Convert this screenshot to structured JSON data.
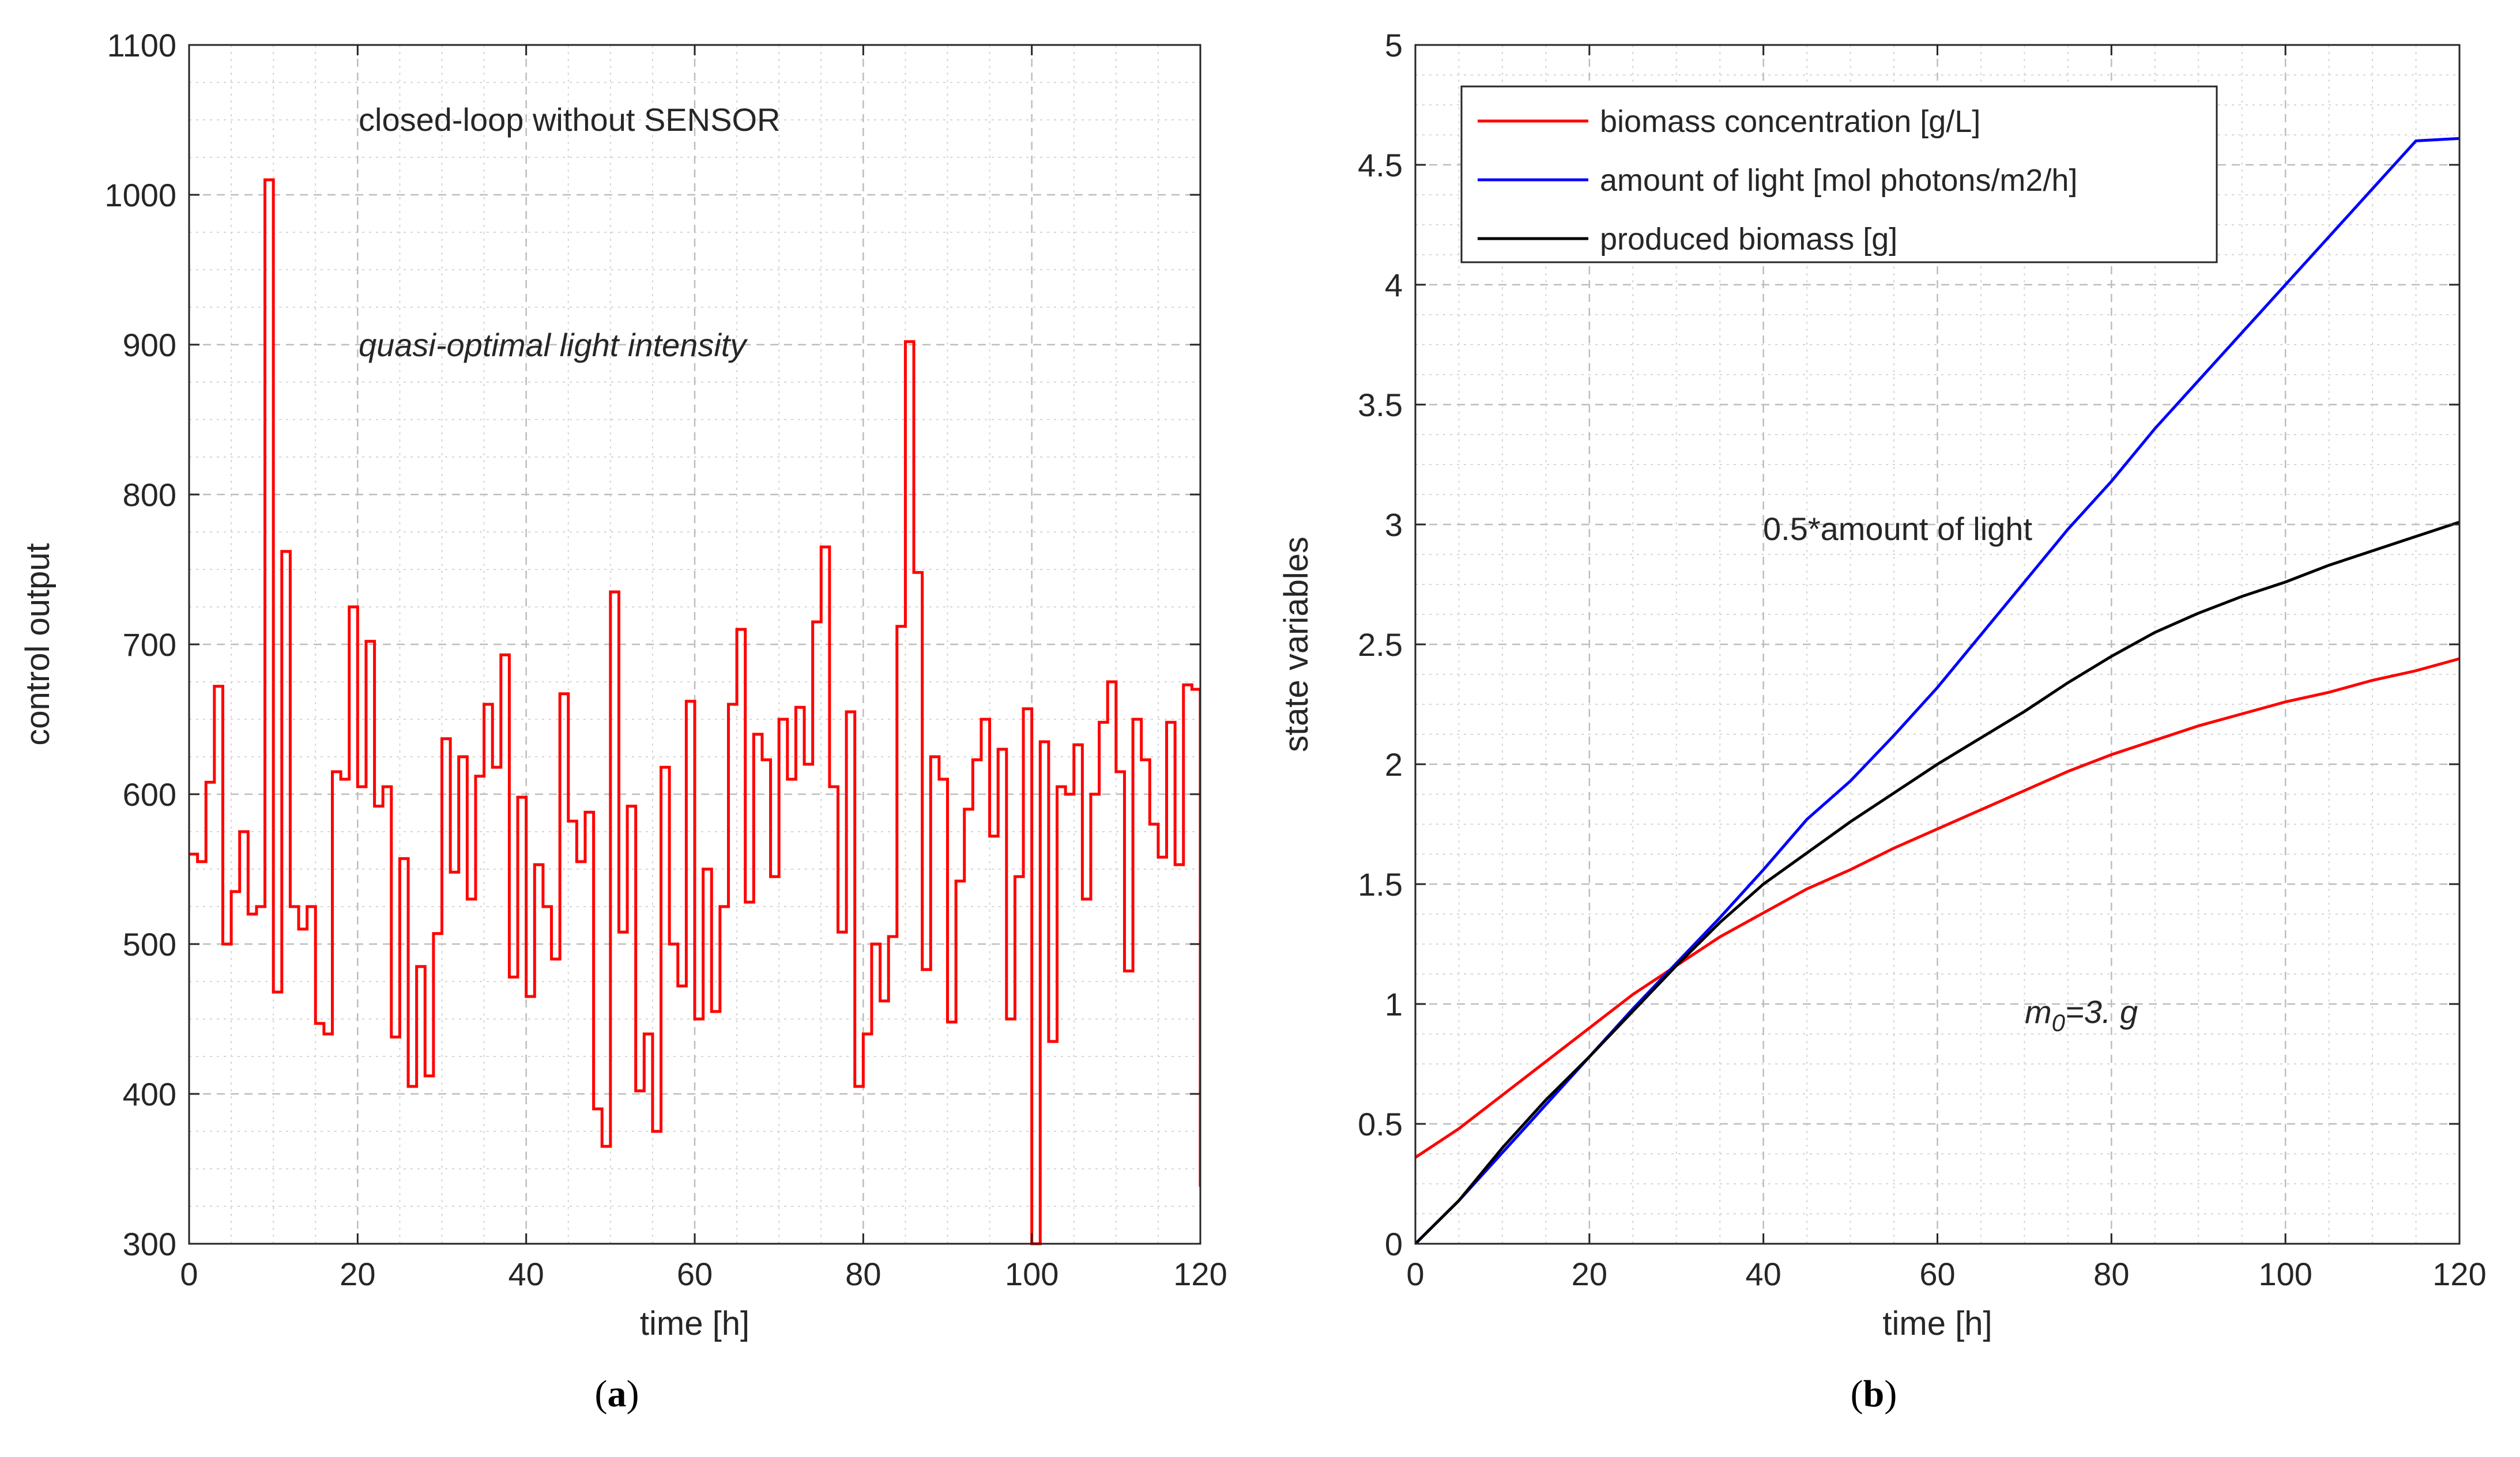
{
  "chart_data": [
    {
      "type": "line",
      "panel": "a",
      "caption_letter": "a",
      "xlabel": "time [h]",
      "ylabel": "control output",
      "xlim": [
        0,
        120
      ],
      "ylim": [
        300,
        1100
      ],
      "xticks": [
        0,
        20,
        40,
        60,
        80,
        100,
        120
      ],
      "yticks": [
        300,
        400,
        500,
        600,
        700,
        800,
        900,
        1000,
        1100
      ],
      "grid": true,
      "annotations": [
        "closed-loop without SENSOR",
        "quasi-optimal light intensity"
      ],
      "series": [
        {
          "name": "control output",
          "color": "#ff0000",
          "step": true,
          "x": [
            0,
            1,
            2,
            3,
            4,
            5,
            6,
            7,
            8,
            9,
            10,
            11,
            12,
            13,
            14,
            15,
            16,
            17,
            18,
            19,
            20,
            21,
            22,
            23,
            24,
            25,
            26,
            27,
            28,
            29,
            30,
            31,
            32,
            33,
            34,
            35,
            36,
            37,
            38,
            39,
            40,
            41,
            42,
            43,
            44,
            45,
            46,
            47,
            48,
            49,
            50,
            51,
            52,
            53,
            54,
            55,
            56,
            57,
            58,
            59,
            60,
            61,
            62,
            63,
            64,
            65,
            66,
            67,
            68,
            69,
            70,
            71,
            72,
            73,
            74,
            75,
            76,
            77,
            78,
            79,
            80,
            81,
            82,
            83,
            84,
            85,
            86,
            87,
            88,
            89,
            90,
            91,
            92,
            93,
            94,
            95,
            96,
            97,
            98,
            99,
            100,
            101,
            102,
            103,
            104,
            105,
            106,
            107,
            108,
            109,
            110,
            111,
            112,
            113,
            114,
            115,
            116,
            117,
            118,
            119,
            120
          ],
          "values": [
            560,
            555,
            608,
            672,
            500,
            535,
            575,
            520,
            525,
            1010,
            468,
            762,
            525,
            510,
            525,
            447,
            440,
            615,
            610,
            725,
            605,
            702,
            592,
            605,
            438,
            557,
            405,
            485,
            412,
            507,
            637,
            548,
            625,
            530,
            612,
            660,
            618,
            693,
            478,
            598,
            465,
            553,
            525,
            490,
            667,
            582,
            555,
            588,
            390,
            365,
            735,
            508,
            592,
            402,
            440,
            375,
            618,
            500,
            472,
            662,
            450,
            550,
            455,
            525,
            660,
            710,
            528,
            640,
            623,
            545,
            650,
            610,
            658,
            620,
            715,
            765,
            605,
            508,
            655,
            405,
            440,
            500,
            462,
            505,
            712,
            902,
            748,
            483,
            625,
            610,
            448,
            542,
            590,
            623,
            650,
            572,
            630,
            450,
            545,
            657,
            300,
            635,
            435,
            605,
            600,
            633,
            530,
            600,
            648,
            675,
            615,
            482,
            650,
            623,
            580,
            558,
            648,
            553,
            673,
            670,
            338
          ]
        }
      ]
    },
    {
      "type": "line",
      "panel": "b",
      "caption_letter": "b",
      "xlabel": "time [h]",
      "ylabel": "state variables",
      "xlim": [
        0,
        120
      ],
      "ylim": [
        0,
        5
      ],
      "xticks": [
        0,
        20,
        40,
        60,
        80,
        100,
        120
      ],
      "yticks": [
        0,
        0.5,
        1,
        1.5,
        2,
        2.5,
        3,
        3.5,
        4,
        4.5,
        5
      ],
      "grid": true,
      "legend_position": "top-left",
      "annotations": [
        "0.5*amount of light"
      ],
      "annotation_m0": {
        "base": "m",
        "sub": "0",
        "rest": "=3. g"
      },
      "series": [
        {
          "name": "biomass concentration [g/L]",
          "color": "#ff0000",
          "x": [
            0,
            5,
            10,
            15,
            20,
            25,
            30,
            35,
            40,
            45,
            50,
            55,
            60,
            65,
            70,
            75,
            80,
            85,
            90,
            95,
            100,
            105,
            110,
            115,
            120
          ],
          "values": [
            0.36,
            0.48,
            0.62,
            0.76,
            0.9,
            1.04,
            1.16,
            1.28,
            1.38,
            1.48,
            1.56,
            1.65,
            1.73,
            1.81,
            1.89,
            1.97,
            2.04,
            2.1,
            2.16,
            2.21,
            2.26,
            2.3,
            2.35,
            2.39,
            2.44
          ]
        },
        {
          "name": "amount of light [mol photons/m2/h]",
          "color": "#0000ff",
          "x": [
            0,
            5,
            10,
            15,
            20,
            25,
            30,
            35,
            40,
            45,
            50,
            55,
            60,
            65,
            70,
            75,
            80,
            85,
            90,
            95,
            100,
            105,
            110,
            115,
            120
          ],
          "values": [
            0.0,
            0.18,
            0.38,
            0.58,
            0.78,
            0.98,
            1.17,
            1.36,
            1.56,
            1.77,
            1.93,
            2.12,
            2.32,
            2.54,
            2.76,
            2.98,
            3.18,
            3.4,
            3.6,
            3.8,
            4.0,
            4.2,
            4.4,
            4.6,
            4.61
          ]
        },
        {
          "name": "produced biomass [g]",
          "color": "#000000",
          "x": [
            0,
            5,
            10,
            15,
            20,
            25,
            30,
            35,
            40,
            45,
            50,
            55,
            60,
            65,
            70,
            75,
            80,
            85,
            90,
            95,
            100,
            105,
            110,
            115,
            120
          ],
          "values": [
            0.0,
            0.18,
            0.4,
            0.6,
            0.78,
            0.97,
            1.16,
            1.34,
            1.5,
            1.63,
            1.76,
            1.88,
            2.0,
            2.11,
            2.22,
            2.34,
            2.45,
            2.55,
            2.63,
            2.7,
            2.76,
            2.83,
            2.89,
            2.95,
            3.01
          ]
        }
      ]
    }
  ]
}
